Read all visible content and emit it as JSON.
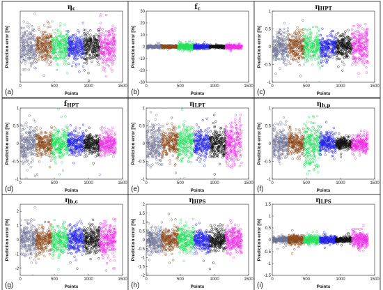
{
  "palette": [
    "#6e7394",
    "#8b4a1b",
    "#22e05a",
    "#2424e6",
    "#111111",
    "#ee2fe6"
  ],
  "chart_data": [
    {
      "type": "scatter",
      "letter": "(a)",
      "title_main": "η",
      "title_sub": "c",
      "xlabel": "Points",
      "ylabel": "Prediction error [%]",
      "xlim": [
        0,
        1500
      ],
      "ylim": [
        -1.5,
        1.5
      ],
      "xticks": [
        "0",
        "500",
        "1000",
        "1500"
      ],
      "yticks": [],
      "groups": 6,
      "points_per_group": 230,
      "series_spread": [
        0.4,
        0.3,
        0.35,
        0.3,
        0.3,
        0.4
      ]
    },
    {
      "type": "scatter",
      "letter": "(b)",
      "title_main": "f",
      "title_sub": "c",
      "xlabel": "Points",
      "ylabel": "Prediction error [%]",
      "xlim": [
        0,
        1500
      ],
      "ylim": [
        -30,
        30
      ],
      "xticks": [
        "0",
        "500",
        "1000",
        "1500"
      ],
      "yticks": [
        "30",
        "20",
        "10",
        "0",
        "-10",
        "-20",
        "-30"
      ],
      "groups": 6,
      "points_per_group": 230,
      "series_spread": [
        0.6,
        0.5,
        1.5,
        0.8,
        0.5,
        0.8
      ]
    },
    {
      "type": "scatter",
      "letter": "(c)",
      "title_main": "η",
      "title_sub": "HPT",
      "xlabel": "Points",
      "ylabel": "Prediction error [%]",
      "xlim": [
        0,
        1500
      ],
      "ylim": [
        -1,
        1
      ],
      "xticks": [
        "0",
        "500",
        "1000",
        "1500"
      ],
      "yticks": [
        "1",
        "0.5",
        "0",
        "-0.5",
        "-1"
      ],
      "groups": 6,
      "points_per_group": 230,
      "series_spread": [
        0.22,
        0.18,
        0.2,
        0.18,
        0.16,
        0.25
      ]
    },
    {
      "type": "scatter",
      "letter": "(d)",
      "title_main": "f",
      "title_sub": "HPT",
      "xlabel": "Points",
      "ylabel": "Prediction error [%]",
      "xlim": [
        0,
        1500
      ],
      "ylim": [
        -1,
        1
      ],
      "xticks": [
        "0",
        "500",
        "1000",
        "1500"
      ],
      "yticks": [
        "1",
        "0.5",
        "0",
        "-0.5",
        "-1"
      ],
      "groups": 6,
      "points_per_group": 230,
      "series_spread": [
        0.25,
        0.18,
        0.2,
        0.16,
        0.14,
        0.16
      ]
    },
    {
      "type": "scatter",
      "letter": "(e)",
      "title_main": "η",
      "title_sub": "LPT",
      "xlabel": "Points",
      "ylabel": "Prediction error [%]",
      "xlim": [
        0,
        1500
      ],
      "ylim": [
        -1,
        1
      ],
      "xticks": [
        "0",
        "500",
        "1000",
        "1500"
      ],
      "yticks": [
        "1",
        "0.5",
        "0",
        "-0.5",
        "-1"
      ],
      "groups": 6,
      "points_per_group": 230,
      "series_spread": [
        0.28,
        0.2,
        0.24,
        0.2,
        0.18,
        0.32
      ]
    },
    {
      "type": "scatter",
      "letter": "(f)",
      "title_main": "η",
      "title_sub": "b,p",
      "xlabel": "Points",
      "ylabel": "Prediction error [%]",
      "xlim": [
        0,
        1500
      ],
      "ylim": [
        -1,
        1
      ],
      "xticks": [
        "0",
        "500",
        "1000",
        "1500"
      ],
      "yticks": [
        "1",
        "0.5",
        "0",
        "-0.5",
        "-1"
      ],
      "groups": 6,
      "points_per_group": 230,
      "series_spread": [
        0.22,
        0.16,
        0.3,
        0.14,
        0.08,
        0.12
      ]
    },
    {
      "type": "scatter",
      "letter": "(g)",
      "title_main": "η",
      "title_sub": "b,c",
      "xlabel": "Points",
      "ylabel": "Prediction error [%]",
      "xlim": [
        0,
        1500
      ],
      "ylim": [
        -2.5,
        2.5
      ],
      "xticks": [
        "0",
        "500",
        "1000",
        "1500"
      ],
      "yticks": [
        "2",
        "1",
        "0",
        "-1",
        "-2"
      ],
      "groups": 6,
      "points_per_group": 230,
      "series_spread": [
        0.55,
        0.45,
        0.5,
        0.45,
        0.45,
        0.55
      ]
    },
    {
      "type": "scatter",
      "letter": "(h)",
      "title_main": "η",
      "title_sub": "HPS",
      "xlabel": "Points",
      "ylabel": "Prediction error [%]",
      "xlim": [
        0,
        1500
      ],
      "ylim": [
        -2,
        2
      ],
      "xticks": [
        "0",
        "500",
        "1000",
        "1500"
      ],
      "yticks": [
        "2",
        "1.5",
        "1",
        "0.5",
        "0",
        "-0.5",
        "-1",
        "-1.5",
        "-2"
      ],
      "groups": 6,
      "points_per_group": 230,
      "series_spread": [
        0.4,
        0.3,
        0.35,
        0.3,
        0.3,
        0.35
      ]
    },
    {
      "type": "scatter",
      "letter": "(i)",
      "title_main": "η",
      "title_sub": "LPS",
      "xlabel": "Points",
      "ylabel": "Prediction error [%]",
      "xlim": [
        0,
        1500
      ],
      "ylim": [
        -1.5,
        1.5
      ],
      "xticks": [
        "0",
        "500",
        "1000",
        "1500"
      ],
      "yticks": [
        "1.5",
        "1",
        "0.5",
        "0",
        "-0.5",
        "-1",
        "-1.5"
      ],
      "groups": 6,
      "points_per_group": 230,
      "series_spread": [
        0.06,
        0.1,
        0.1,
        0.07,
        0.05,
        0.18
      ]
    }
  ]
}
